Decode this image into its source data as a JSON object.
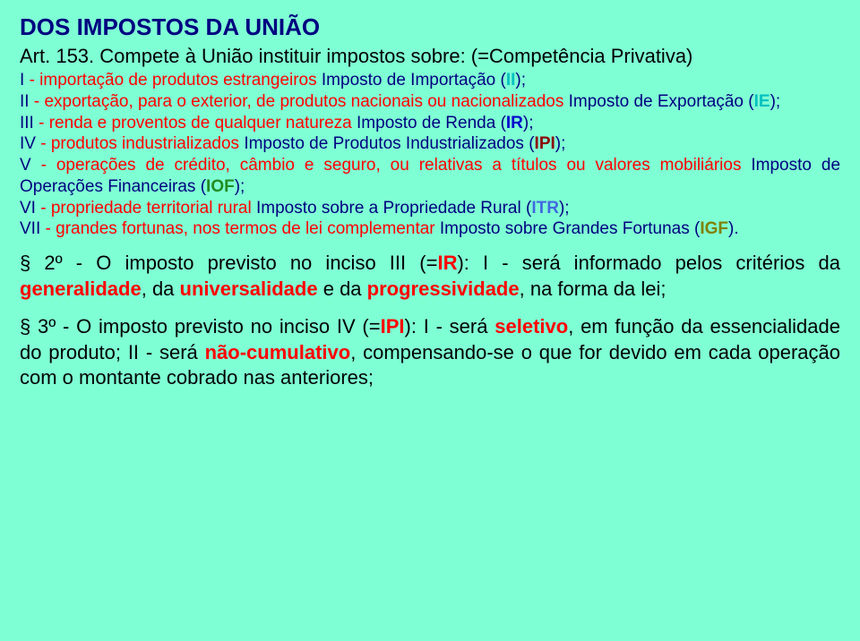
{
  "colors": {
    "background": "#7fffd4",
    "body_text": "#000080",
    "red": "#ff0000",
    "cyan_label": "#00c0c0",
    "ir_blue": "#0000cd",
    "ipi_darkred": "#8b0000",
    "iof_green": "#228b22",
    "itr_blue": "#4169e1",
    "igf_olive": "#808000",
    "black": "#000000"
  },
  "typography": {
    "body_fontsize": 19,
    "title_fontsize": 26,
    "art_fontsize": 22,
    "para2_fontsize": 22,
    "font_family": "Verdana"
  },
  "title": "DOS IMPOSTOS DA UNIÃO",
  "art": "Art. 153. Compete à União instituir impostos sobre: (=Competência Privativa)",
  "items": {
    "I_pre": "I ",
    "I_red": "- importação de produtos estrangeiros ",
    "I_post": " Imposto de Importação (",
    "I_code": "II",
    "I_close": ");",
    "II_pre": "II ",
    "II_red": "- exportação, para o exterior, de produtos nacionais ou nacionalizados ",
    "II_post": " Imposto de Exportação (",
    "II_code": "IE",
    "II_close": ");",
    "III_pre": "III ",
    "III_red": "- renda e proventos de qualquer natureza ",
    "III_post": " Imposto de Renda (",
    "III_code": "IR",
    "III_close": ");",
    "IV_pre": "IV ",
    "IV_red": "- produtos industrializados ",
    "IV_post": " Imposto de Produtos Industrializados (",
    "IV_code": "IPI",
    "IV_close": ");",
    "V_pre": "V ",
    "V_red": "- operações de crédito, câmbio e seguro, ou relativas a títulos ou valores mobiliários ",
    "V_post": " Imposto de Operações Financeiras (",
    "V_code": "IOF",
    "V_close": ");",
    "VI_pre": "VI ",
    "VI_red": "- propriedade territorial rural ",
    "VI_post": " Imposto sobre a Propriedade Rural (",
    "VI_code": "ITR",
    "VI_close": ");",
    "VII_pre": "VII ",
    "VII_red": "- grandes fortunas, nos termos de lei complementar ",
    "VII_post": " Imposto sobre Grandes Fortunas (",
    "VII_code": "IGF",
    "VII_close": ")."
  },
  "p2": {
    "a": "§ 2º - O imposto previsto no inciso III (=",
    "ir": "IR",
    "b": "): I - será informado pelos critérios da ",
    "gen": "generalidade",
    "c": ", da ",
    "uni": "universalidade",
    "d": " e da ",
    "prog": "progressividade",
    "e": ", na forma da lei;"
  },
  "p3": {
    "a": "§ 3º - O imposto previsto no inciso IV (=",
    "ipi": "IPI",
    "b": "): I - será ",
    "sel": "seletivo",
    "c": ", em função da essencialidade do produto; II - será ",
    "nao": "não-cumulativo",
    "d": ", compensando-se o que for devido em cada operação com o montante cobrado nas anteriores;"
  }
}
